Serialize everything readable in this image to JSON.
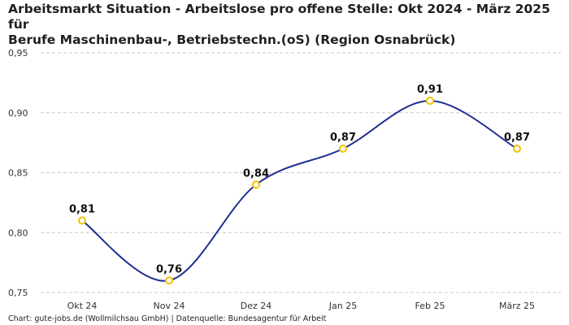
{
  "title_line1": "Arbeitsmarkt Situation - Arbeitslose pro offene Stelle: Okt 2024 - März 2025 für",
  "title_line2": "Berufe Maschinenbau-, Betriebstechn.(oS) (Region Osnabrück)",
  "footer": "Chart: gute-jobs.de (Wollmilchsau GmbH) | Datenquelle: Bundesagentur für Arbeit",
  "chart_data": {
    "type": "line",
    "title": "Arbeitsmarkt Situation - Arbeitslose pro offene Stelle: Okt 2024 - März 2025 für Berufe Maschinenbau-, Betriebstechn.(oS) (Region Osnabrück)",
    "categories": [
      "Okt 24",
      "Nov 24",
      "Dez 24",
      "Jan 25",
      "Feb 25",
      "März 25"
    ],
    "values": [
      0.81,
      0.76,
      0.84,
      0.87,
      0.91,
      0.87
    ],
    "labels": [
      "0,81",
      "0,76",
      "0,84",
      "0,87",
      "0,91",
      "0,87"
    ],
    "ylim": [
      0.75,
      0.95
    ],
    "yticks": [
      0.75,
      0.8,
      0.85,
      0.9,
      0.95
    ],
    "ytick_labels": [
      "0,75",
      "0,80",
      "0,85",
      "0,90",
      "0,95"
    ],
    "xlabel": "",
    "ylabel": "",
    "grid": true,
    "line_color": "#1f2f8f",
    "marker_color": "#f2c200"
  }
}
